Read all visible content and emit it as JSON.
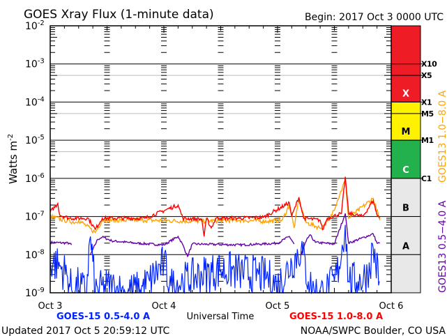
{
  "chart_data": {
    "type": "line",
    "title": "GOES Xray Flux (1-minute data)",
    "begin_label": "Begin:  2017 Oct 3 0000 UTC",
    "xlabel": "Universal Time",
    "ylabel": "Watts m",
    "ylabel_sup": "-2",
    "yscale": "log",
    "ylim": [
      1e-09,
      0.01
    ],
    "xlim_hours": [
      0,
      72
    ],
    "x_unit": "hours since 2017 Oct 3 00:00 UTC",
    "x_ticks": [
      {
        "h": 0,
        "label": "Oct 3"
      },
      {
        "h": 24,
        "label": "Oct 4"
      },
      {
        "h": 48,
        "label": "Oct 5"
      },
      {
        "h": 72,
        "label": "Oct 6"
      }
    ],
    "y_ticks": [
      {
        "exp": -2,
        "label": "10",
        "sup": "-2"
      },
      {
        "exp": -3,
        "label": "10",
        "sup": "-3"
      },
      {
        "exp": -4,
        "label": "10",
        "sup": "-4"
      },
      {
        "exp": -5,
        "label": "10",
        "sup": "-5"
      },
      {
        "exp": -6,
        "label": "10",
        "sup": "-6"
      },
      {
        "exp": -7,
        "label": "10",
        "sup": "-7"
      },
      {
        "exp": -8,
        "label": "10",
        "sup": "-8"
      },
      {
        "exp": -9,
        "label": "10",
        "sup": "-9"
      }
    ],
    "grey_gridlines": [
      0.0005,
      5e-05,
      5e-06
    ],
    "flare_classes": [
      {
        "label": "X",
        "lo": 0.0001,
        "hi": 0.01,
        "color": "#ee1c24",
        "text_color": "#ffffff"
      },
      {
        "label": "M",
        "lo": 1e-05,
        "hi": 0.0001,
        "color": "#fff200",
        "text_color": "#000000"
      },
      {
        "label": "C",
        "lo": 1e-06,
        "hi": 1e-05,
        "color": "#22b14c",
        "text_color": "#ffffff"
      },
      {
        "label": "B",
        "lo": 1e-07,
        "hi": 1e-06,
        "color": "#e8e8e8",
        "text_color": "#000000"
      },
      {
        "label": "A",
        "lo": 1e-08,
        "hi": 1e-07,
        "color": "#e8e8e8",
        "text_color": "#000000"
      },
      {
        "label": "",
        "lo": 1e-09,
        "hi": 1e-08,
        "color": "#e8e8e8",
        "text_color": "#000000"
      }
    ],
    "flare_levels": [
      {
        "label": "X10",
        "value": 0.001
      },
      {
        "label": "X5",
        "value": 0.0005
      },
      {
        "label": "X1",
        "value": 0.0001
      },
      {
        "label": "M5",
        "value": 5e-05
      },
      {
        "label": "M1",
        "value": 1e-05
      },
      {
        "label": "C1",
        "value": 1e-06
      }
    ],
    "series": [
      {
        "name": "GOES-15 0.5-4.0 A",
        "color": "#0022ff",
        "legend": "bottom-left",
        "points": [
          [
            0,
            7e-09
          ],
          [
            2,
            5e-09
          ],
          [
            3.5,
            3e-09
          ],
          [
            4.5,
            1.2e-09
          ],
          [
            6,
            1.5e-09
          ],
          [
            7.5,
            1e-09
          ],
          [
            8.5,
            3e-08
          ],
          [
            9.5,
            1e-09
          ],
          [
            12,
            1.5e-09
          ],
          [
            16,
            1e-09
          ],
          [
            19,
            1.2e-09
          ],
          [
            21,
            2e-09
          ],
          [
            24,
            6e-09
          ],
          [
            25.5,
            1.5e-09
          ],
          [
            28,
            2e-09
          ],
          [
            32,
            3e-09
          ],
          [
            36,
            4e-09
          ],
          [
            40,
            3.5e-09
          ],
          [
            44,
            3e-09
          ],
          [
            46,
            2.5e-09
          ],
          [
            48,
            1.5e-09
          ],
          [
            51,
            6e-09
          ],
          [
            53,
            1.5e-08
          ],
          [
            54.5,
            2e-09
          ],
          [
            56,
            1e-09
          ],
          [
            58,
            1e-09
          ],
          [
            60,
            2e-09
          ],
          [
            61,
            5e-09
          ],
          [
            62.3,
            6e-08
          ],
          [
            63,
            2e-09
          ],
          [
            65,
            2e-09
          ],
          [
            67,
            3e-09
          ],
          [
            68.2,
            1.5e-08
          ],
          [
            69.5,
            2e-09
          ]
        ]
      },
      {
        "name": "GOES-15 1.0-8.0 A",
        "color": "#ff0000",
        "legend": "bottom-right",
        "points": [
          [
            0,
            1.3e-07
          ],
          [
            1.6,
            2.2e-07
          ],
          [
            2,
            1.1e-07
          ],
          [
            4,
            9e-08
          ],
          [
            8,
            9e-08
          ],
          [
            9.5,
            4.6e-08
          ],
          [
            11,
            9e-08
          ],
          [
            20,
            9e-08
          ],
          [
            27,
            2e-07
          ],
          [
            28,
            9e-08
          ],
          [
            32,
            8.5e-08
          ],
          [
            32.5,
            3e-08
          ],
          [
            33,
            9e-08
          ],
          [
            34,
            5e-08
          ],
          [
            35,
            9e-08
          ],
          [
            40,
            9e-08
          ],
          [
            45,
            9.5e-08
          ],
          [
            50.5,
            2.3e-07
          ],
          [
            51,
            1e-07
          ],
          [
            52.5,
            3.2e-07
          ],
          [
            53.5,
            9e-08
          ],
          [
            57,
            8e-08
          ],
          [
            57.5,
            4.5e-08
          ],
          [
            58.5,
            9e-08
          ],
          [
            61.5,
            1.2e-07
          ],
          [
            62.3,
            1.1e-06
          ],
          [
            63,
            1.2e-07
          ],
          [
            66,
            1e-07
          ],
          [
            68.2,
            2.6e-07
          ],
          [
            69,
            1.1e-07
          ],
          [
            69.6,
            9e-08
          ]
        ]
      },
      {
        "name": "GOES13 1.0-8.0 A",
        "color": "#ffa500",
        "legend": "right-axis",
        "points": [
          [
            0,
            1e-07
          ],
          [
            3,
            8e-08
          ],
          [
            5.5,
            7e-08
          ],
          [
            6,
            8e-08
          ],
          [
            9.5,
            3.8e-08
          ],
          [
            11,
            8e-08
          ],
          [
            20,
            8e-08
          ],
          [
            30,
            7.5e-08
          ],
          [
            40,
            8e-08
          ],
          [
            46,
            7.5e-08
          ],
          [
            49,
            8e-08
          ],
          [
            50.5,
            2e-07
          ],
          [
            51.5,
            5e-08
          ],
          [
            52.5,
            2.8e-07
          ],
          [
            54,
            7e-08
          ],
          [
            57,
            5e-08
          ],
          [
            59,
            8e-08
          ],
          [
            62.3,
            9e-07
          ],
          [
            63,
            9e-08
          ],
          [
            68.2,
            3e-07
          ],
          [
            69.6,
            8e-08
          ]
        ]
      },
      {
        "name": "GOES13 0.5-4.0 A",
        "color": "#6600aa",
        "legend": "right-axis",
        "points": [
          [
            0,
            2.1e-08
          ],
          [
            4,
            2e-08
          ],
          [
            4.5,
            1.8e-08
          ],
          [
            5.2,
            null
          ],
          [
            8.5,
            1e-08
          ],
          [
            10,
            2.5e-08
          ],
          [
            11,
            2.9e-08
          ],
          [
            13,
            2.3e-08
          ],
          [
            18,
            2e-08
          ],
          [
            24,
            1.8e-08
          ],
          [
            27,
            3e-08
          ],
          [
            28,
            1.8e-08
          ],
          [
            29,
            9e-09
          ],
          [
            30,
            1.9e-08
          ],
          [
            40,
            1.8e-08
          ],
          [
            45,
            1.9e-08
          ],
          [
            48,
            2e-08
          ],
          [
            50.5,
            3e-08
          ],
          [
            51.5,
            1.9e-08
          ],
          [
            52,
            null
          ],
          [
            53,
            1e-08
          ],
          [
            54,
            2.2e-08
          ],
          [
            54.8,
            3.3e-08
          ],
          [
            56,
            2.1e-08
          ],
          [
            60,
            1.9e-08
          ],
          [
            62.3,
            1.2e-07
          ],
          [
            63,
            2e-08
          ],
          [
            68.2,
            3.5e-08
          ],
          [
            69,
            2e-08
          ],
          [
            69.6,
            2e-08
          ]
        ]
      }
    ],
    "right_axis_labels": [
      {
        "text": "GOES13 0.5−4.0 A",
        "color": "#6600aa"
      },
      {
        "text": "GOES13 1.0−8.0 A",
        "color": "#ffa500"
      }
    ]
  },
  "footer": {
    "updated": "Updated 2017 Oct  5 20:59:12 UTC",
    "credit": "NOAA/SWPC Boulder, CO USA"
  }
}
